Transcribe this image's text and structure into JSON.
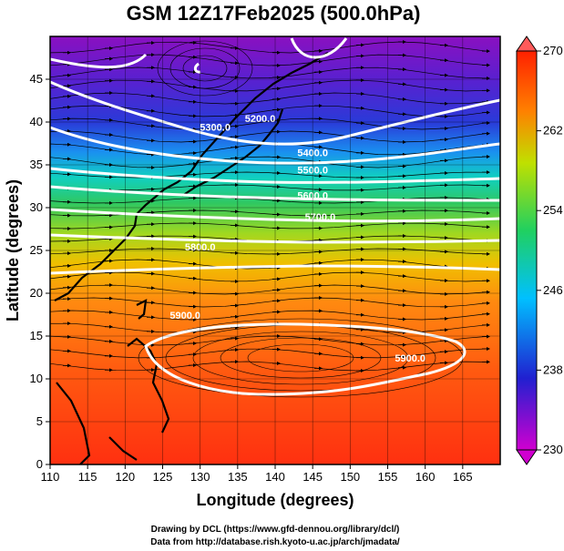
{
  "chart_data": {
    "type": "heatmap",
    "title": "GSM 12Z17Feb2025 (500.0hPa)",
    "xlabel": "Longitude (degrees)",
    "ylabel": "Latitude  (degrees)",
    "xlim": [
      110,
      170
    ],
    "ylim": [
      0,
      50
    ],
    "x_ticks": [
      110,
      115,
      120,
      125,
      130,
      135,
      140,
      145,
      150,
      155,
      160,
      165
    ],
    "y_ticks": [
      0,
      5,
      10,
      15,
      20,
      25,
      30,
      35,
      40,
      45
    ],
    "grid": true,
    "colorbar": {
      "min": 230,
      "max": 270,
      "ticks": [
        230,
        238,
        246,
        254,
        262,
        270
      ],
      "colors": [
        "#d000d0",
        "#2020d0",
        "#00c0ff",
        "#20d060",
        "#c0e000",
        "#ff8000",
        "#ff2000"
      ]
    },
    "contours": [
      {
        "label": "5200.0",
        "lon": 138,
        "lat": 40
      },
      {
        "label": "5300.0",
        "lon": 132,
        "lat": 39
      },
      {
        "label": "5400.0",
        "lon": 145,
        "lat": 36
      },
      {
        "label": "5500.0",
        "lon": 145,
        "lat": 34
      },
      {
        "label": "5600.0",
        "lon": 145,
        "lat": 31
      },
      {
        "label": "5700.0",
        "lon": 146,
        "lat": 28.5
      },
      {
        "label": "5800.0",
        "lon": 130,
        "lat": 25
      },
      {
        "label": "5900.0",
        "lon": 128,
        "lat": 17
      },
      {
        "label": "5900.0",
        "lon": 158,
        "lat": 12
      }
    ]
  },
  "credits": {
    "line1": "Drawing by DCL (https://www.gfd-dennou.org/library/dcl/)",
    "line2": "Data from http://database.rish.kyoto-u.ac.jp/arch/jmadata/"
  }
}
